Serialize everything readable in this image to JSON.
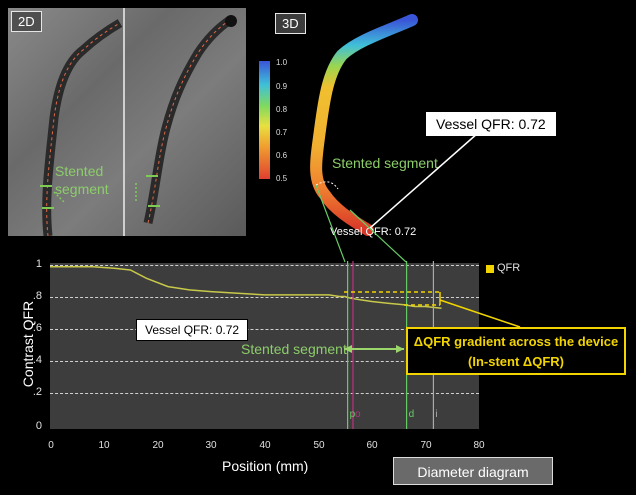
{
  "panels": {
    "label_2d": "2D",
    "label_3d": "3D",
    "stented_segment_2d": "Stented\nsegment",
    "stented_segment_3d": "Stented segment",
    "vessel_qfr_3d_small": "Vessel QFR: 0.72"
  },
  "scale_bar": {
    "ticks": [
      "1.0",
      "0.9",
      "0.8",
      "0.7",
      "0.6",
      "0.5"
    ],
    "colors": [
      "#3a55d8",
      "#3fbfd9",
      "#7fd960",
      "#e8e040",
      "#f0a030",
      "#e04030"
    ]
  },
  "callouts": {
    "vessel_qfr_main": "Vessel QFR: 0.72",
    "vessel_qfr_plot": "Vessel QFR: 0.72",
    "stented_segment_plot": "Stented segment",
    "gradient_line1": "ΔQFR gradient across the device",
    "gradient_line2": "(In-stent ΔQFR)",
    "diameter_diagram": "Diameter diagram"
  },
  "chart_data": {
    "type": "line",
    "xlabel": "Position (mm)",
    "ylabel": "Contrast QFR",
    "xlim": [
      0,
      80
    ],
    "ylim": [
      0,
      1
    ],
    "x_ticks": [
      "0",
      "10",
      "20",
      "30",
      "40",
      "50",
      "60",
      "70",
      "80"
    ],
    "y_ticks": [
      "1",
      ".8",
      ".6",
      ".4",
      ".2",
      "0"
    ],
    "grid": true,
    "legend": "top-right",
    "series": [
      {
        "name": "QFR",
        "color": "#c8c84a",
        "x": [
          0,
          8,
          12,
          15,
          18,
          22,
          26,
          30,
          35,
          40,
          45,
          50,
          52,
          54,
          55,
          56,
          58,
          60,
          63,
          66,
          68,
          70,
          73
        ],
        "y": [
          0.99,
          0.99,
          0.98,
          0.97,
          0.92,
          0.87,
          0.85,
          0.84,
          0.83,
          0.82,
          0.82,
          0.82,
          0.82,
          0.81,
          0.81,
          0.8,
          0.79,
          0.78,
          0.77,
          0.76,
          0.75,
          0.75,
          0.74
        ]
      }
    ],
    "markers": [
      {
        "label": "p",
        "x": 55.5,
        "color": "#66cc66"
      },
      {
        "label": "o",
        "x": 56.5,
        "color": "#c03080"
      },
      {
        "label": "d",
        "x": 66.5,
        "color": "#66cc66"
      },
      {
        "label": "i",
        "x": 71.5,
        "color": "#aaaaaa"
      }
    ]
  }
}
